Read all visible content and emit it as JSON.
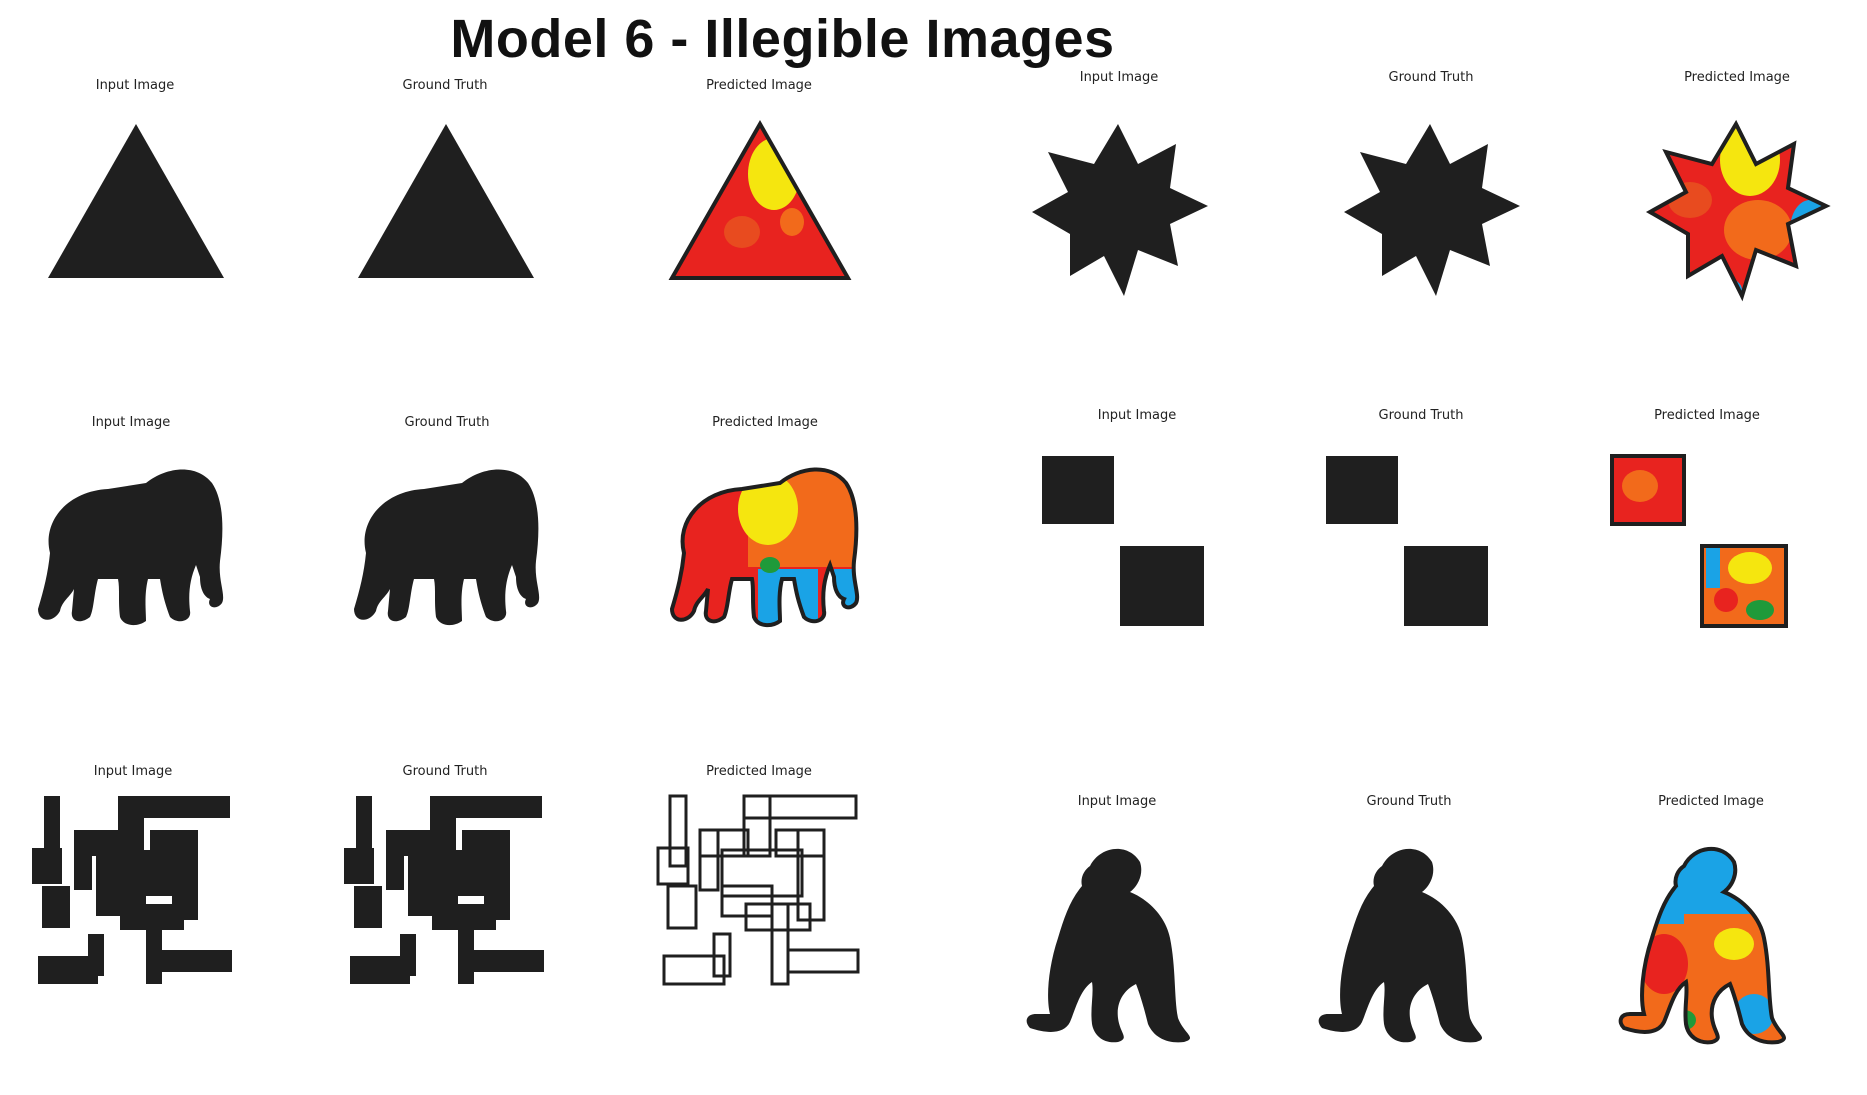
{
  "title": "Model 6 - Illegible Images",
  "labels": {
    "input": "Input Image",
    "truth": "Ground Truth",
    "predicted": "Predicted Image"
  },
  "colors": {
    "silhouette": "#1f1f1f",
    "red": "#e8231f",
    "orange": "#f26a1b",
    "yellow": "#f5e60f",
    "blue": "#1aa3e6",
    "green": "#1f9a3a"
  },
  "rows": [
    {
      "left_shape": "triangle",
      "right_shape": "star"
    },
    {
      "left_shape": "elephant",
      "right_shape": "two-squares"
    },
    {
      "left_shape": "maze",
      "right_shape": "gorilla"
    }
  ]
}
